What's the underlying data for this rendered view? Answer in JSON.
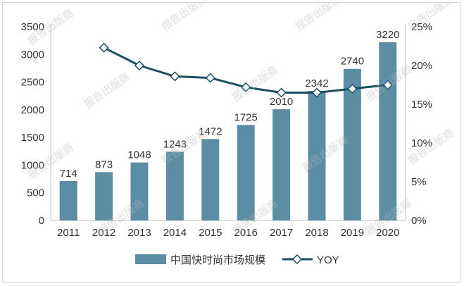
{
  "chart_data": {
    "type": "bar",
    "categories": [
      "2011",
      "2012",
      "2013",
      "2014",
      "2015",
      "2016",
      "2017",
      "2018",
      "2019",
      "2020"
    ],
    "series": [
      {
        "name": "中国快时尚市场规模",
        "type": "bar",
        "axis": "left",
        "values": [
          714,
          873,
          1048,
          1243,
          1472,
          1725,
          2010,
          2342,
          2740,
          3220
        ],
        "color": "#5b8ea4"
      },
      {
        "name": "YOY",
        "type": "line",
        "axis": "right",
        "values": [
          null,
          22.3,
          20.0,
          18.6,
          18.4,
          17.2,
          16.5,
          16.5,
          17.0,
          17.5
        ],
        "color": "#1c4e62"
      }
    ],
    "yleft": {
      "ticks": [
        "0",
        "500",
        "1000",
        "1500",
        "2000",
        "2500",
        "3000",
        "3500"
      ],
      "range": [
        0,
        3500
      ]
    },
    "yright": {
      "ticks": [
        "0%",
        "5%",
        "10%",
        "15%",
        "20%",
        "25%"
      ],
      "range": [
        0,
        25
      ]
    },
    "data_labels": [
      "714",
      "873",
      "1048",
      "1243",
      "1472",
      "1725",
      "2010",
      "2342",
      "2740",
      "3220"
    ],
    "legend_position": "bottom",
    "grid": false
  },
  "watermark": "报告出版商"
}
